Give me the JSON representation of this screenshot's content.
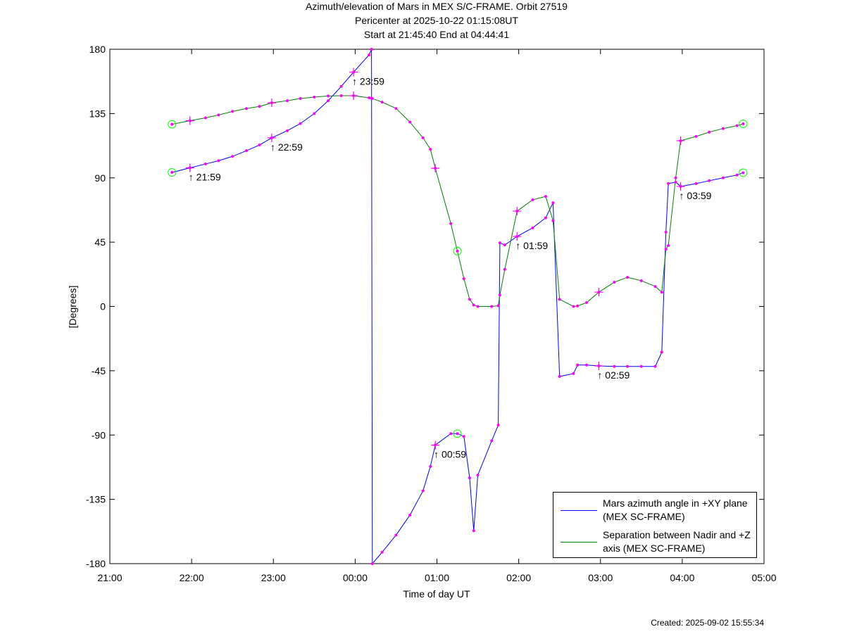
{
  "chart_data": {
    "type": "line",
    "title": "Azimuth/elevation of Mars in MEX S/C-FRAME.  Orbit 27519",
    "subtitle": [
      "Pericenter at 2025-10-22 01:15:08UT",
      "Start at 21:45:40 End at 04:44:41"
    ],
    "x_label": "Time of day UT",
    "y_label": "[Degrees]",
    "footer": "Created: 2025-09-02 15:55:34",
    "xlim": [
      21,
      29
    ],
    "xticks": [
      {
        "value": 21,
        "label": "21:00"
      },
      {
        "value": 22,
        "label": "22:00"
      },
      {
        "value": 23,
        "label": "23:00"
      },
      {
        "value": 24,
        "label": "00:00"
      },
      {
        "value": 25,
        "label": "01:00"
      },
      {
        "value": 26,
        "label": "02:00"
      },
      {
        "value": 27,
        "label": "03:00"
      },
      {
        "value": 28,
        "label": "04:00"
      },
      {
        "value": 29,
        "label": "05:00"
      }
    ],
    "ylim": [
      -180,
      180
    ],
    "yticks": [
      180,
      135,
      90,
      45,
      0,
      -45,
      -90,
      -135,
      -180
    ],
    "x": [
      21.76,
      21.98,
      22.17,
      22.33,
      22.5,
      22.67,
      22.83,
      22.98,
      23.17,
      23.33,
      23.5,
      23.67,
      23.83,
      23.98,
      24.17,
      24.2,
      24.21,
      24.33,
      24.5,
      24.67,
      24.83,
      24.92,
      24.98,
      25.17,
      25.25,
      25.33,
      25.4,
      25.45,
      25.5,
      25.67,
      25.75,
      25.77,
      25.83,
      25.98,
      26.17,
      26.33,
      26.42,
      26.5,
      26.67,
      26.72,
      26.83,
      26.98,
      27.17,
      27.33,
      27.5,
      27.67,
      27.75,
      27.8,
      27.83,
      27.92,
      27.98,
      28.17,
      28.33,
      28.5,
      28.67,
      28.745
    ],
    "series": [
      {
        "name": "Mars azimuth angle in +XY plane (MEX SC-FRAME)",
        "color": "#0000ff",
        "values": [
          93.8,
          97,
          99.7,
          102,
          105,
          109,
          113,
          118,
          123,
          128,
          135,
          144,
          154,
          164,
          176,
          180,
          -180,
          -172,
          -160,
          -146,
          -129,
          -112,
          -97,
          -89,
          -89,
          -91,
          -120,
          -157,
          -118,
          -94,
          -83,
          44.5,
          43,
          49,
          55,
          62,
          72.6,
          -49,
          -47,
          -41,
          -41,
          -41.6,
          -42,
          -42,
          -42,
          -42,
          -32,
          52,
          86,
          87,
          84,
          86,
          88,
          90,
          92,
          93.6
        ]
      },
      {
        "name": "Separation between Nadir and +Z axis (MEX SC-FRAME)",
        "color": "#008000",
        "values": [
          127.5,
          130,
          132,
          134,
          136.5,
          138.5,
          140,
          142.5,
          144,
          145.5,
          146.5,
          147.3,
          147.5,
          147.5,
          146,
          145.7,
          145.5,
          143,
          138.6,
          129,
          118,
          110,
          96.7,
          58,
          38.7,
          19.4,
          5,
          1,
          0,
          0,
          0.5,
          8,
          26,
          66.7,
          74.6,
          77,
          60,
          5,
          0,
          0.3,
          2.7,
          10,
          17,
          20.4,
          18,
          14,
          10,
          40,
          42.6,
          90,
          116,
          119,
          122,
          124.5,
          126.5,
          127.8
        ]
      }
    ],
    "marker_color": "#ff00ff",
    "circle_color": "#00ff00",
    "circle_markers": [
      21.76,
      25.25,
      28.745
    ],
    "annotations": [
      {
        "text": "↑ 21:59",
        "x": 21.98,
        "y": 97
      },
      {
        "text": "↑ 22:59",
        "x": 22.98,
        "y": 118
      },
      {
        "text": "↑ 23:59",
        "x": 23.98,
        "y": 164
      },
      {
        "text": "↑ 00:59",
        "x": 24.98,
        "y": -97
      },
      {
        "text": "↑ 01:59",
        "x": 25.98,
        "y": 49
      },
      {
        "text": "↑ 02:59",
        "x": 26.98,
        "y": -41.6
      },
      {
        "text": "↑ 03:59",
        "x": 27.98,
        "y": 84
      }
    ],
    "legend": "lower right"
  }
}
